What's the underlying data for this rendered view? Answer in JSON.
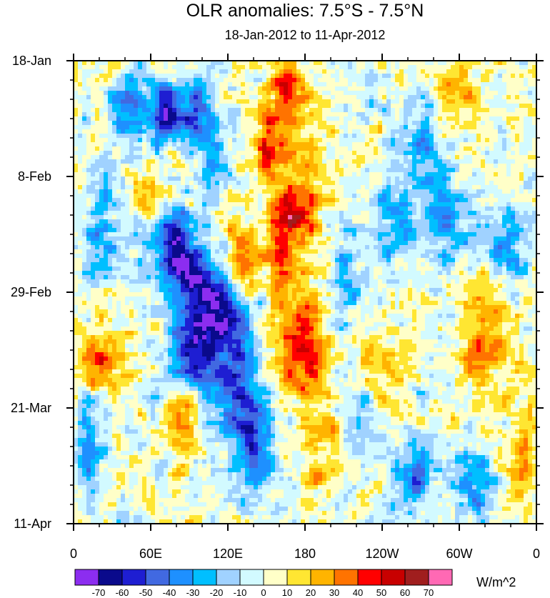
{
  "title": "OLR anomalies: 7.5°S - 7.5°N",
  "subtitle": "18-Jan-2012 to 11-Apr-2012",
  "chart_data": {
    "type": "heatmap",
    "title": "OLR anomalies: 7.5°S - 7.5°N",
    "subtitle": "18-Jan-2012 to 11-Apr-2012",
    "x_ticks": [
      "0",
      "60E",
      "120E",
      "180",
      "120W",
      "60W",
      "0"
    ],
    "x_tick_values": [
      0,
      60,
      120,
      180,
      240,
      300,
      360
    ],
    "xlim": [
      0,
      360
    ],
    "y_ticks": [
      "18-Jan",
      "8-Feb",
      "29-Feb",
      "21-Mar",
      "11-Apr"
    ],
    "y_tick_values": [
      0,
      21,
      42,
      63,
      84
    ],
    "ylim": [
      0,
      84
    ],
    "colorbar_units": "W/m^2",
    "colorbar_levels": [
      -70,
      -60,
      -50,
      -40,
      -30,
      -20,
      -10,
      0,
      10,
      20,
      30,
      40,
      50,
      60,
      70
    ],
    "colorbar_colors": [
      "#8c2df0",
      "#0a0a8c",
      "#1e1ed2",
      "#4169e1",
      "#1e90ff",
      "#00bfff",
      "#a0d2ff",
      "#d2faff",
      "#ffffc8",
      "#ffe632",
      "#ffb400",
      "#ff7300",
      "#ff0000",
      "#c80000",
      "#a01e1e",
      "#ff69b4"
    ],
    "features": [
      {
        "lon": 45,
        "day": 8,
        "value": -45,
        "lon_radius": 14,
        "day_radius": 6
      },
      {
        "lon": 70,
        "day": 10,
        "value": -55,
        "lon_radius": 12,
        "day_radius": 5
      },
      {
        "lon": 95,
        "day": 10,
        "value": -45,
        "lon_radius": 16,
        "day_radius": 6
      },
      {
        "lon": 165,
        "day": 6,
        "value": 45,
        "lon_radius": 12,
        "day_radius": 10
      },
      {
        "lon": 150,
        "day": 16,
        "value": 40,
        "lon_radius": 10,
        "day_radius": 7
      },
      {
        "lon": 165,
        "day": 28,
        "value": 55,
        "lon_radius": 14,
        "day_radius": 6
      },
      {
        "lon": 130,
        "day": 36,
        "value": 45,
        "lon_radius": 12,
        "day_radius": 6
      },
      {
        "lon": 160,
        "day": 38,
        "value": 45,
        "lon_radius": 10,
        "day_radius": 6
      },
      {
        "lon": 75,
        "day": 33,
        "value": -55,
        "lon_radius": 20,
        "day_radius": 6
      },
      {
        "lon": 90,
        "day": 39,
        "value": -50,
        "lon_radius": 14,
        "day_radius": 5
      },
      {
        "lon": 110,
        "day": 46,
        "value": -55,
        "lon_radius": 25,
        "day_radius": 9
      },
      {
        "lon": 95,
        "day": 55,
        "value": -45,
        "lon_radius": 22,
        "day_radius": 8
      },
      {
        "lon": 130,
        "day": 60,
        "value": -40,
        "lon_radius": 18,
        "day_radius": 10
      },
      {
        "lon": 140,
        "day": 70,
        "value": -40,
        "lon_radius": 15,
        "day_radius": 8
      },
      {
        "lon": 175,
        "day": 52,
        "value": 40,
        "lon_radius": 22,
        "day_radius": 8
      },
      {
        "lon": 85,
        "day": 65,
        "value": 45,
        "lon_radius": 12,
        "day_radius": 7
      },
      {
        "lon": 20,
        "day": 54,
        "value": 40,
        "lon_radius": 16,
        "day_radius": 6
      },
      {
        "lon": 185,
        "day": 28,
        "value": 20,
        "lon_radius": 14,
        "day_radius": 30
      },
      {
        "lon": 190,
        "day": 72,
        "value": 15,
        "lon_radius": 20,
        "day_radius": 10
      },
      {
        "lon": 210,
        "day": 40,
        "value": -20,
        "lon_radius": 16,
        "day_radius": 10
      },
      {
        "lon": 250,
        "day": 30,
        "value": -30,
        "lon_radius": 18,
        "day_radius": 8
      },
      {
        "lon": 290,
        "day": 28,
        "value": -35,
        "lon_radius": 15,
        "day_radius": 8
      },
      {
        "lon": 335,
        "day": 34,
        "value": -35,
        "lon_radius": 14,
        "day_radius": 6
      },
      {
        "lon": 270,
        "day": 15,
        "value": -25,
        "lon_radius": 20,
        "day_radius": 8
      },
      {
        "lon": 320,
        "day": 50,
        "value": 30,
        "lon_radius": 22,
        "day_radius": 10
      },
      {
        "lon": 300,
        "day": 6,
        "value": 25,
        "lon_radius": 20,
        "day_radius": 6
      },
      {
        "lon": 240,
        "day": 55,
        "value": 25,
        "lon_radius": 18,
        "day_radius": 9
      },
      {
        "lon": 265,
        "day": 75,
        "value": -40,
        "lon_radius": 14,
        "day_radius": 6
      },
      {
        "lon": 310,
        "day": 77,
        "value": -35,
        "lon_radius": 16,
        "day_radius": 6
      },
      {
        "lon": 345,
        "day": 78,
        "value": 25,
        "lon_radius": 12,
        "day_radius": 6
      },
      {
        "lon": 10,
        "day": 70,
        "value": -35,
        "lon_radius": 12,
        "day_radius": 9
      },
      {
        "lon": 20,
        "day": 30,
        "value": -30,
        "lon_radius": 15,
        "day_radius": 10
      },
      {
        "lon": 60,
        "day": 25,
        "value": 35,
        "lon_radius": 12,
        "day_radius": 5
      },
      {
        "lon": 110,
        "day": 18,
        "value": -30,
        "lon_radius": 10,
        "day_radius": 5
      },
      {
        "lon": 225,
        "day": 64,
        "value": -30,
        "lon_radius": 10,
        "day_radius": 6
      },
      {
        "lon": 355,
        "day": 66,
        "value": 30,
        "lon_radius": 10,
        "day_radius": 8
      }
    ]
  }
}
